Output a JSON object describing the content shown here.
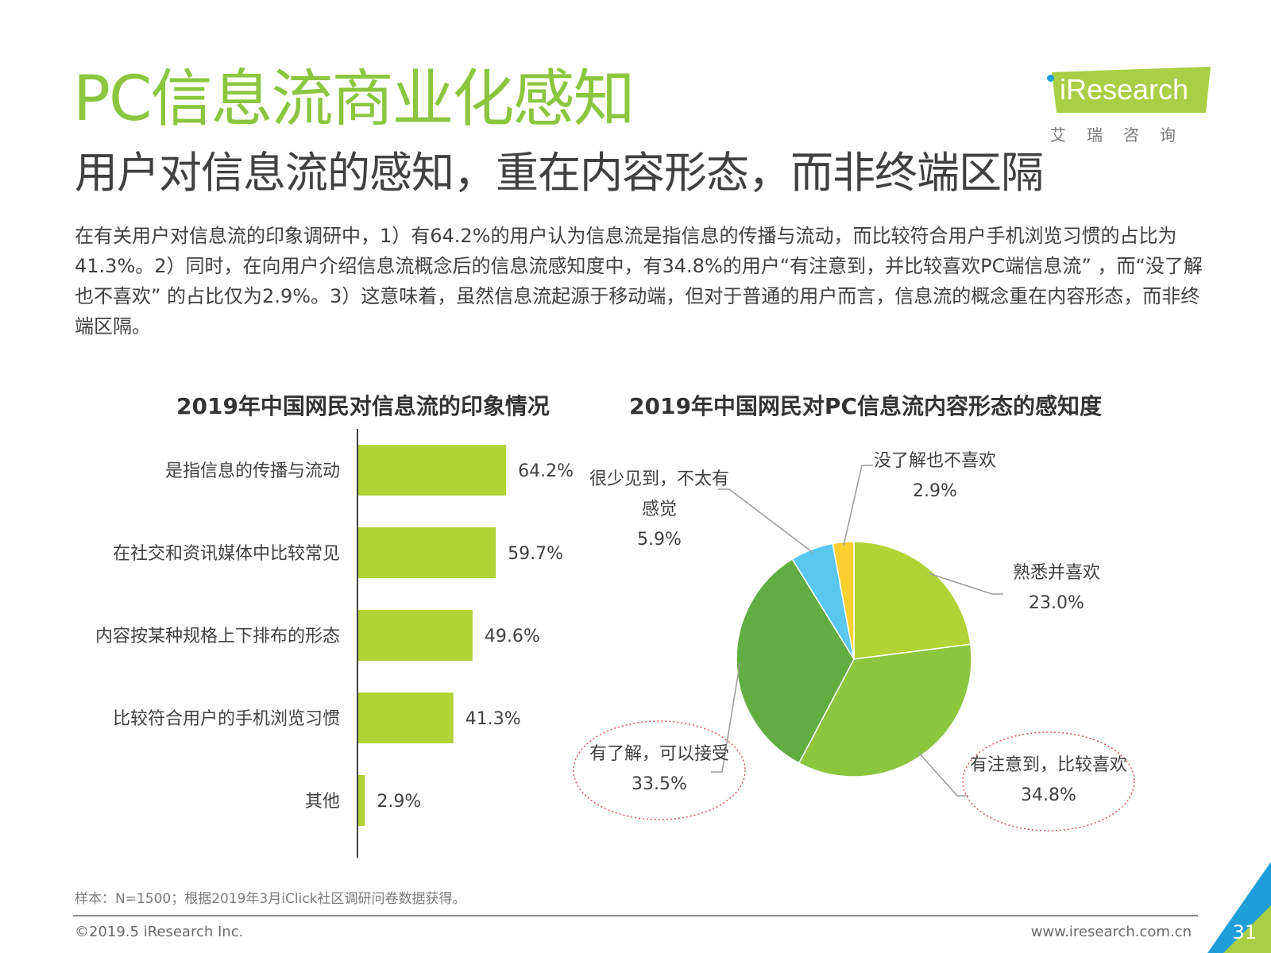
{
  "header": {
    "title": "PC信息流商业化感知",
    "subtitle": "用户对信息流的感知，重在内容形态，而非终端区隔"
  },
  "logo": {
    "name": "iResearch",
    "cn": "艾瑞咨询"
  },
  "body_text": "在有关用户对信息流的印象调研中，1）有64.2%的用户认为信息流是指信息的传播与流动，而比较符合用户手机浏览习惯的占比为41.3%。2）同时，在向用户介绍信息流概念后的信息流感知度中，有34.8%的用户“有注意到，并比较喜欢PC端信息流” ，而“没了解也不喜欢” 的占比仅为2.9%。3）这意味着，虽然信息流起源于移动端，但对于普通的用户而言，信息流的概念重在内容形态，而非终端区隔。",
  "chart_data": [
    {
      "type": "bar",
      "orientation": "horizontal",
      "title": "2019年中国网民对信息流的印象情况",
      "categories": [
        "是指信息的传播与流动",
        "在社交和资讯媒体中比较常见",
        "内容按某种规格上下排布的形态",
        "比较符合用户的手机浏览习惯",
        "其他"
      ],
      "values": [
        64.2,
        59.7,
        49.6,
        41.3,
        2.9
      ],
      "value_labels": [
        "64.2%",
        "59.7%",
        "49.6%",
        "41.3%",
        "2.9%"
      ],
      "xlim": [
        0,
        100
      ],
      "grid": false,
      "color": "#b2d235"
    },
    {
      "type": "pie",
      "title": "2019年中国网民对PC信息流内容形态的感知度",
      "slices": [
        {
          "label": "熟悉并喜欢",
          "value": 23.0,
          "value_label": "23.0%",
          "color": "#b2d235"
        },
        {
          "label": "有注意到，比较喜欢",
          "value": 34.8,
          "value_label": "34.8%",
          "color": "#8cc63f",
          "highlighted": true
        },
        {
          "label": "有了解，可以接受",
          "value": 33.5,
          "value_label": "33.5%",
          "color": "#62ad41",
          "highlighted": true
        },
        {
          "label": "很少见到，不太有感觉",
          "value": 5.9,
          "value_label": "5.9%",
          "color": "#59c7ef"
        },
        {
          "label": "没了解也不喜欢",
          "value": 2.9,
          "value_label": "2.9%",
          "color": "#f9d030"
        }
      ],
      "start_angle": "12 o'clock",
      "direction": "clockwise"
    }
  ],
  "footer": {
    "note": "样本：N=1500；根据2019年3月iClick社区调研问卷数据获得。",
    "copyright": "©2019.5 iResearch Inc.",
    "website": "www.iresearch.com.cn",
    "page": "31"
  },
  "colors": {
    "accent_green": "#8cc63f",
    "bar_green": "#b2d235",
    "corner_blue": "#1f9fd9",
    "highlight_ring": "#e05555"
  }
}
